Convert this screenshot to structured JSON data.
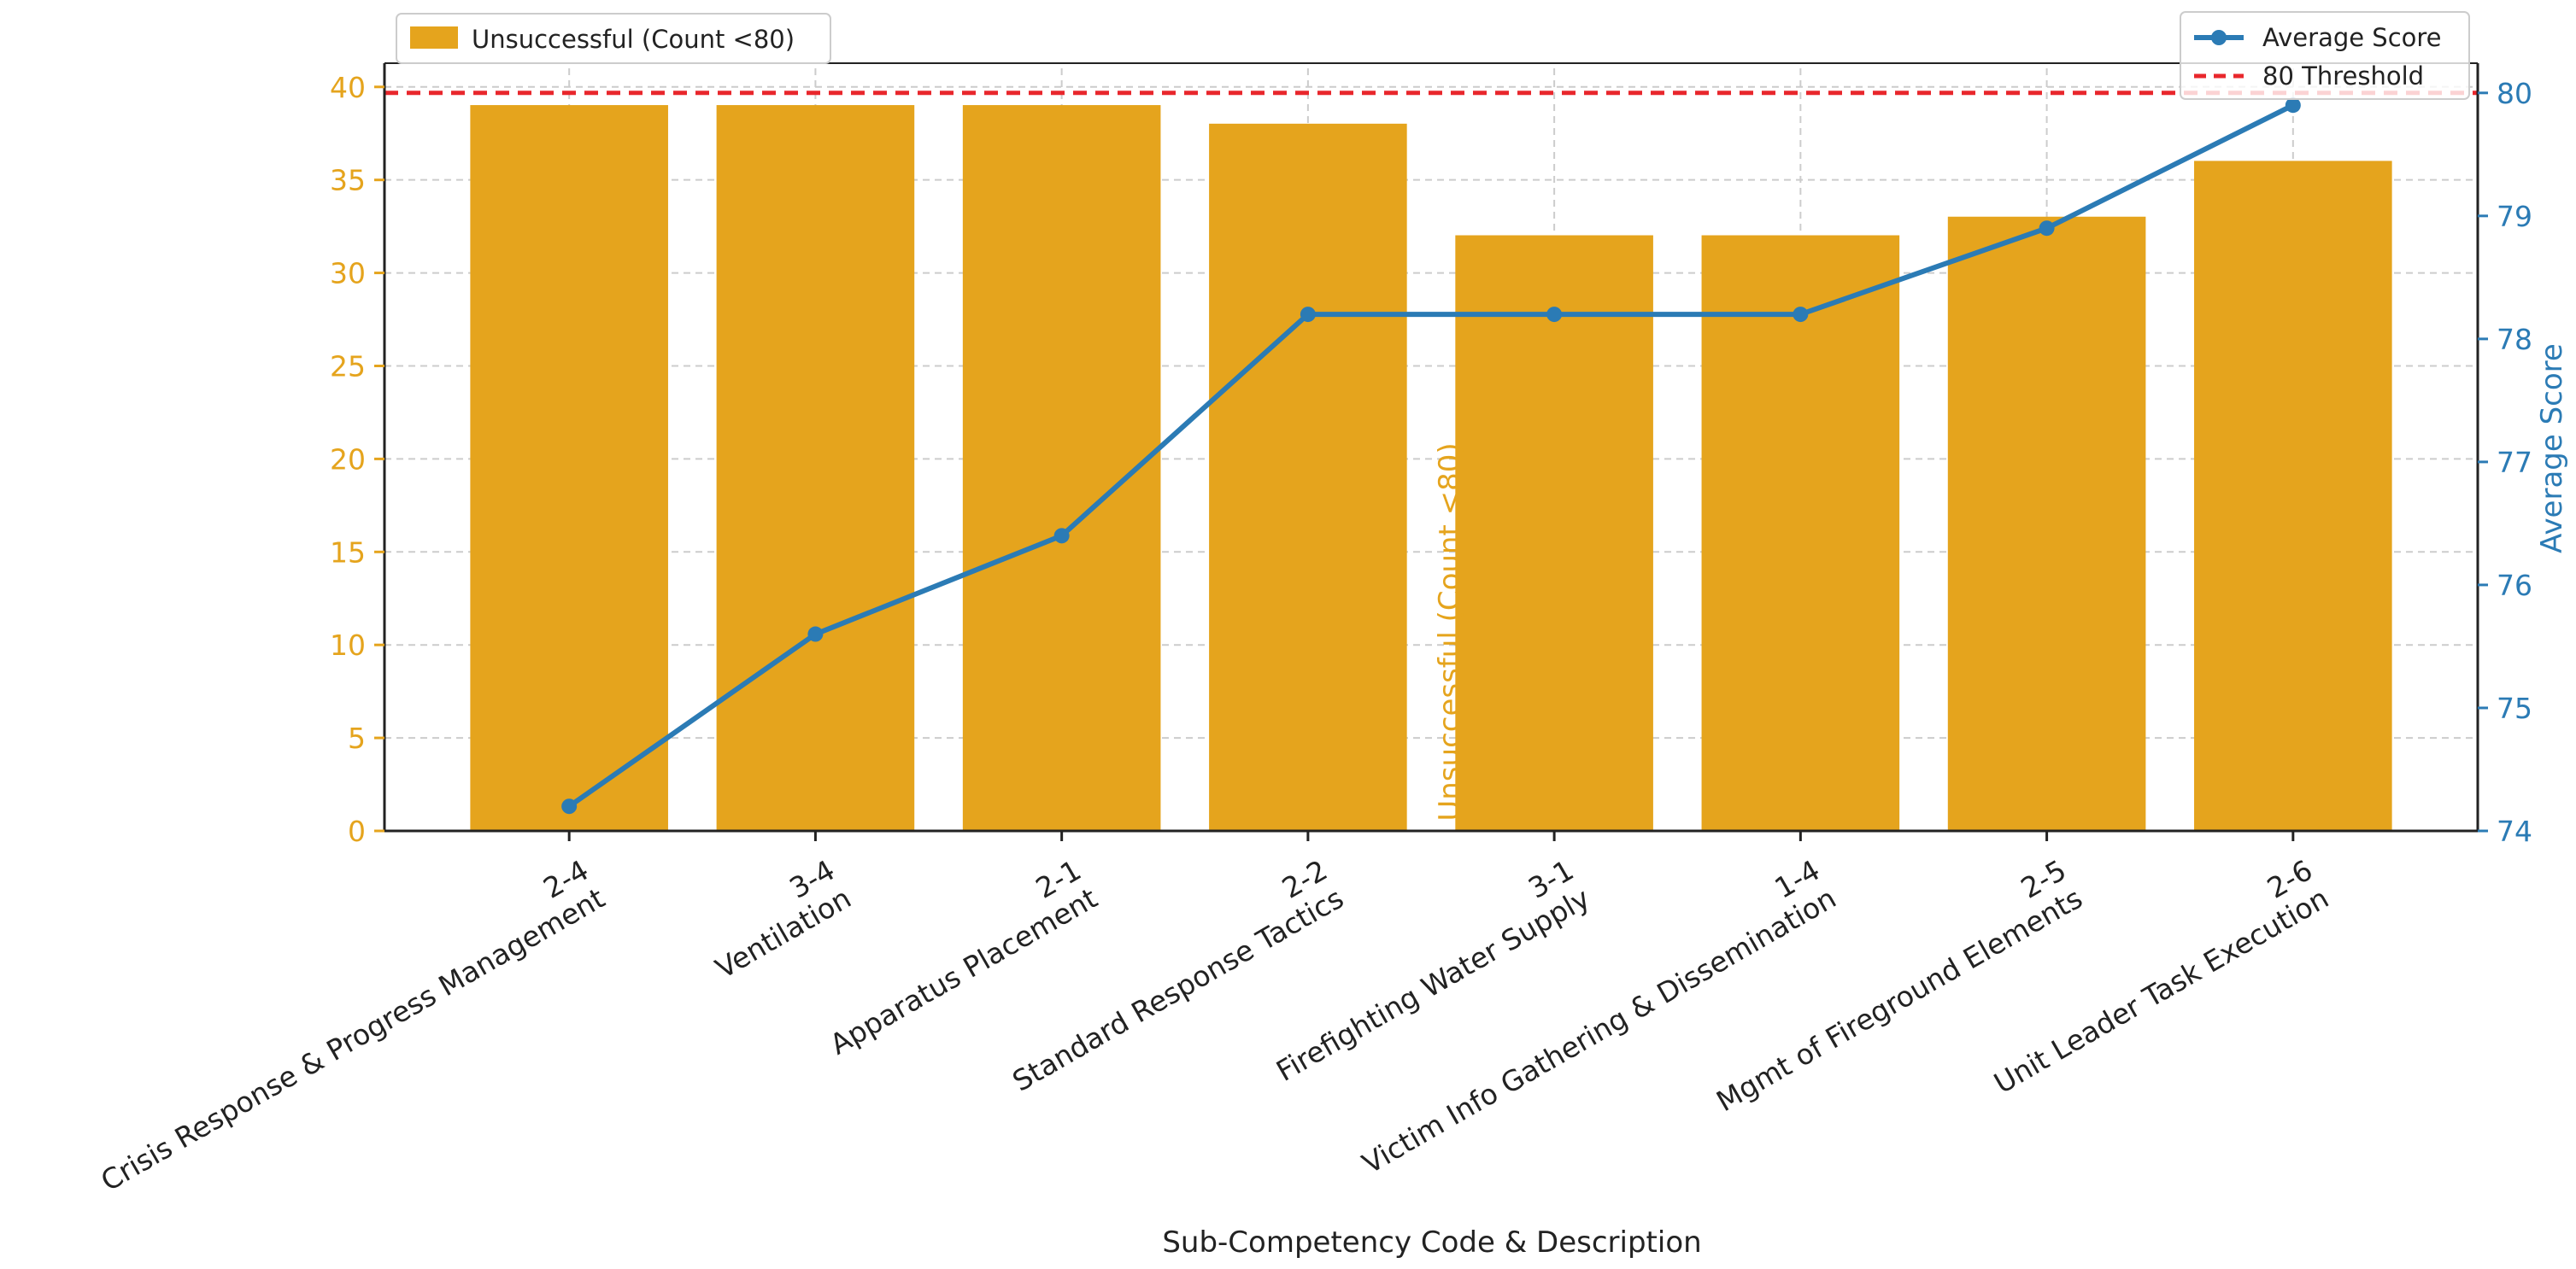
{
  "colors": {
    "bar": "#E5A41D",
    "bar_edge": "#E5A41D",
    "line": "#2B7BB5",
    "threshold": "#E8272C",
    "left_axis": "#E5A41D",
    "right_axis": "#2B7BB5",
    "grid": "#cccccc",
    "text": "#222222"
  },
  "chart_data": {
    "type": "bar",
    "categories": [
      "2-4\nCrisis Response & Progress Management",
      "3-4\nVentilation",
      "2-1\nApparatus Placement",
      "2-2\nStandard Response Tactics",
      "3-1\nFirefighting Water Supply",
      "1-4\nVictim Info Gathering & Dissemination",
      "2-5\nMgmt of Fireground Elements",
      "2-6\nUnit Leader Task Execution"
    ],
    "category_codes": [
      "2-4",
      "3-4",
      "2-1",
      "2-2",
      "3-1",
      "1-4",
      "2-5",
      "2-6"
    ],
    "category_descriptions": [
      "Crisis Response & Progress Management",
      "Ventilation",
      "Apparatus Placement",
      "Standard Response Tactics",
      "Firefighting Water Supply",
      "Victim Info Gathering & Dissemination",
      "Mgmt of Fireground Elements",
      "Unit Leader Task Execution"
    ],
    "series": [
      {
        "name": "Unsuccessful (Count <80)",
        "type": "bar",
        "axis": "left",
        "values": [
          39,
          39,
          39,
          38,
          32,
          32,
          33,
          36
        ]
      },
      {
        "name": "Average Score",
        "type": "line",
        "axis": "right",
        "values": [
          74.2,
          75.6,
          76.4,
          78.2,
          78.2,
          78.2,
          78.9,
          79.9
        ]
      }
    ],
    "threshold": {
      "name": "80 Threshold",
      "value": 80,
      "axis": "right",
      "style": "dashed"
    },
    "xlabel": "Sub-Competency Code & Description",
    "ylabel_left": "Unsuccessful (Count <80)",
    "ylabel_right": "Average Score",
    "ylim_left": [
      0,
      41
    ],
    "ylim_right": [
      74,
      80.2
    ],
    "yticks_left": [
      0,
      5,
      10,
      15,
      20,
      25,
      30,
      35,
      40
    ],
    "yticks_right": [
      74,
      75,
      76,
      77,
      78,
      79,
      80
    ],
    "grid": true,
    "legend_bar_placement": "upper-left",
    "legend_line_placement": "upper-right"
  }
}
